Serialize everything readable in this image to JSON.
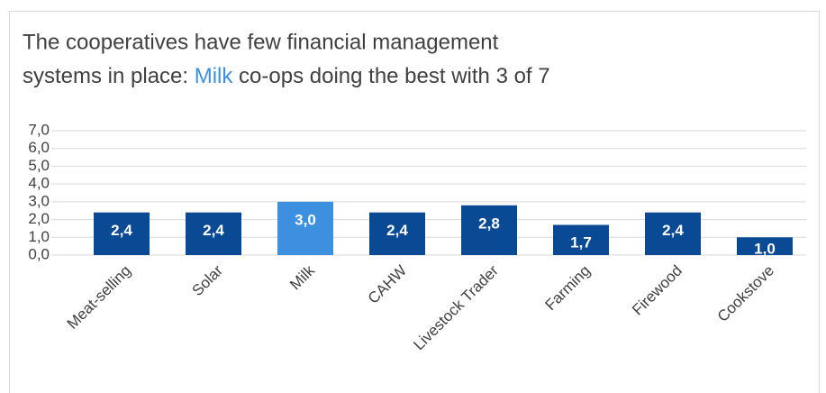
{
  "chart_data": {
    "type": "bar",
    "title": {
      "line1": "The cooperatives have few financial management",
      "line2_start": "systems in place: ",
      "highlight": "Milk",
      "line2_end": " co-ops doing the best with 3 of 7",
      "highlight_color": "#3d8fe0"
    },
    "categories": [
      "Meat-selling",
      "Solar",
      "Milk",
      "CAHW",
      "Livestock Trader",
      "Farming",
      "Firewood",
      "Cookstove"
    ],
    "values": [
      2.4,
      2.4,
      3.0,
      2.4,
      2.8,
      1.7,
      2.4,
      1.0
    ],
    "value_labels": [
      "2,4",
      "2,4",
      "3,0",
      "2,4",
      "2,8",
      "1,7",
      "2,4",
      "1,0"
    ],
    "colors": [
      "#0a4a94",
      "#0a4a94",
      "#3d8fe0",
      "#0a4a94",
      "#0a4a94",
      "#0a4a94",
      "#0a4a94",
      "#0a4a94"
    ],
    "ylim": [
      0,
      7
    ],
    "yticks": [
      {
        "value": 0,
        "label": "0,0"
      },
      {
        "value": 1,
        "label": "1,0"
      },
      {
        "value": 2,
        "label": "2,0"
      },
      {
        "value": 3,
        "label": "3,0"
      },
      {
        "value": 4,
        "label": "4,0"
      },
      {
        "value": 5,
        "label": "5,0"
      },
      {
        "value": 6,
        "label": "6,0"
      },
      {
        "value": 7,
        "label": "7,0"
      }
    ],
    "grid": true
  }
}
